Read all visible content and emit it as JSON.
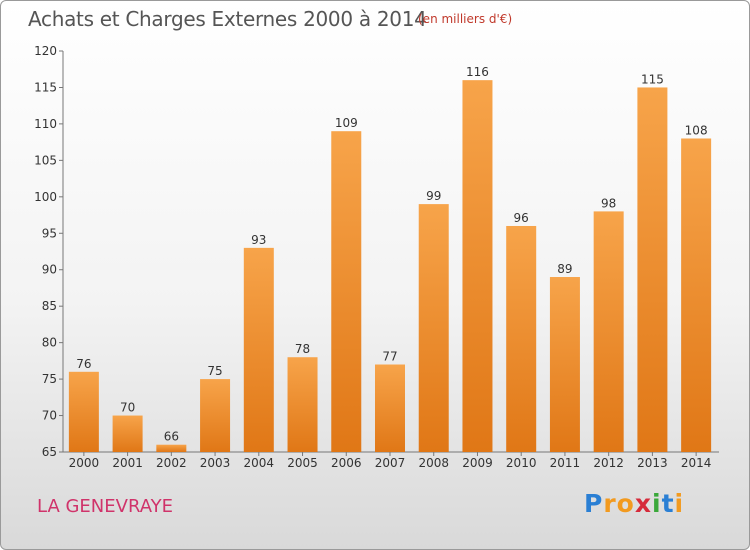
{
  "title": "Achats et Charges Externes 2000 à 2014",
  "unit": "(en milliers d'€)",
  "commune": "LA GENEVRAYE",
  "logo": {
    "letters": [
      "P",
      "r",
      "o",
      "x",
      "i",
      "t",
      "i"
    ],
    "colors": [
      "#2a7fd4",
      "#f29a1f",
      "#f29a1f",
      "#d62a3a",
      "#3aa83a",
      "#2a7fd4",
      "#f29a1f"
    ]
  },
  "colors": {
    "bar_light": "#f7a44a",
    "bar_dark": "#e07716",
    "title": "#555555",
    "commune": "#d0336a"
  },
  "chart_data": {
    "type": "bar",
    "categories": [
      "2000",
      "2001",
      "2002",
      "2003",
      "2004",
      "2005",
      "2006",
      "2007",
      "2008",
      "2009",
      "2010",
      "2011",
      "2012",
      "2013",
      "2014"
    ],
    "values": [
      76,
      70,
      66,
      75,
      93,
      78,
      109,
      77,
      99,
      116,
      96,
      89,
      98,
      115,
      108
    ],
    "title": "Achats et Charges Externes 2000 à 2014",
    "xlabel": "",
    "ylabel": "",
    "ylim": [
      65,
      120
    ],
    "yticks": [
      65,
      70,
      75,
      80,
      85,
      90,
      95,
      100,
      105,
      110,
      115,
      120
    ],
    "grid": false,
    "legend": "none"
  }
}
